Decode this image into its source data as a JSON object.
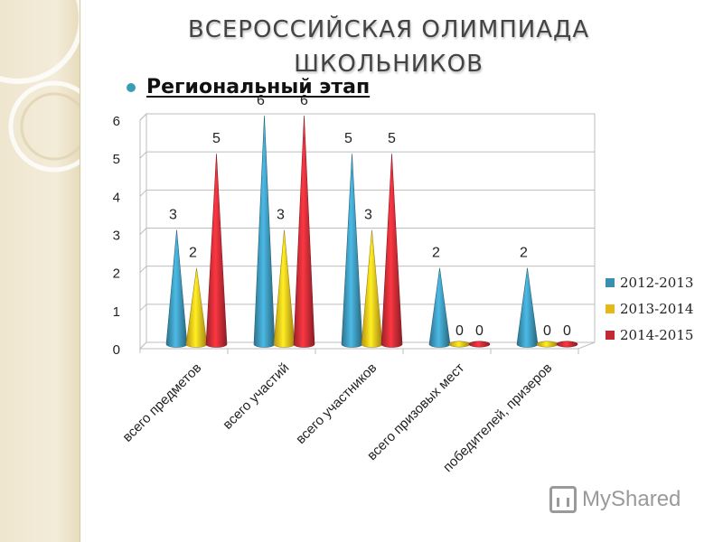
{
  "slide": {
    "title_line1": "ВСЕРОССИЙСКАЯ ОЛИМПИАДА",
    "title_line2": "ШКОЛЬНИКОВ",
    "bullet": "Региональный этап",
    "watermark": "MyShared"
  },
  "colors": {
    "accent": "#3d9cb3",
    "sidebar": "#efe6cf"
  },
  "chart_data": {
    "type": "bar",
    "bar_shape": "cone",
    "categories": [
      "всего предметов",
      "всего участий",
      "всего участников",
      "всего призовых мест",
      "победителей, призеров"
    ],
    "series": [
      {
        "name": "2012-2013",
        "color": "#3a8fb0",
        "values": [
          3,
          6,
          5,
          2,
          2
        ]
      },
      {
        "name": "2013-2014",
        "color": "#e8b81a",
        "values": [
          2,
          3,
          3,
          0,
          0
        ]
      },
      {
        "name": "2014-2015",
        "color": "#c22a33",
        "values": [
          5,
          6,
          5,
          0,
          0
        ]
      }
    ],
    "yticks": [
      "0",
      "1",
      "2",
      "3",
      "4",
      "5",
      "6"
    ],
    "ylim": [
      0,
      6
    ],
    "grid": true,
    "legend_position": "right"
  }
}
